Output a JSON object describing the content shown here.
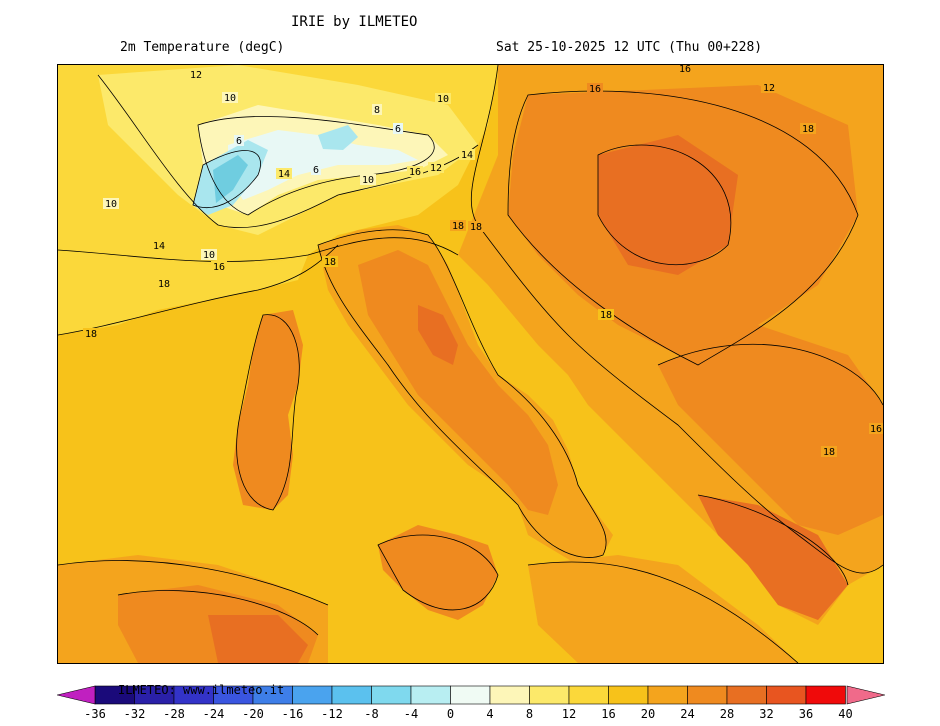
{
  "header": {
    "title": "IRIE by ILMETEO",
    "variable": "2m Temperature (degC)",
    "valid_time": "Sat 25-10-2025 12 UTC (Thu 00+228)"
  },
  "map": {
    "contour_labels": [
      {
        "text": "12",
        "id": "c1"
      },
      {
        "text": "10",
        "id": "c2"
      },
      {
        "text": "10",
        "id": "c3"
      },
      {
        "text": "8",
        "id": "c4"
      },
      {
        "text": "6",
        "id": "c5"
      },
      {
        "text": "6",
        "id": "c6"
      },
      {
        "text": "6",
        "id": "c7"
      },
      {
        "text": "10",
        "id": "c8"
      },
      {
        "text": "14",
        "id": "c9"
      },
      {
        "text": "14",
        "id": "c10"
      },
      {
        "text": "16",
        "id": "c11"
      },
      {
        "text": "12",
        "id": "c12"
      },
      {
        "text": "10",
        "id": "c13"
      },
      {
        "text": "14",
        "id": "c14"
      },
      {
        "text": "10",
        "id": "c15"
      },
      {
        "text": "16",
        "id": "c16"
      },
      {
        "text": "18",
        "id": "c17"
      },
      {
        "text": "18",
        "id": "c18"
      },
      {
        "text": "18",
        "id": "c19"
      },
      {
        "text": "16",
        "id": "c20"
      },
      {
        "text": "18",
        "id": "c21"
      },
      {
        "text": "16",
        "id": "c22"
      },
      {
        "text": "12",
        "id": "c23"
      },
      {
        "text": "18",
        "id": "c24"
      },
      {
        "text": "18",
        "id": "c25"
      },
      {
        "text": "18",
        "id": "c26"
      },
      {
        "text": "16",
        "id": "c27"
      },
      {
        "text": "18",
        "id": "c28"
      }
    ],
    "colors": {
      "sea_20_24": "#f7c21a",
      "land_24_28": "#f4a41d",
      "land_28_32": "#ef8a1f",
      "land_32_36": "#e86f22",
      "cold_16_20": "#fbd83a",
      "cold_12_16": "#fce96a",
      "cold_8_12": "#fdf6b8",
      "cold_4_8": "#e8f8f5",
      "cold_0_4": "#a9e6ee",
      "cold_below_0": "#6fcde0"
    }
  },
  "legend": {
    "watermark": "ILMETEO: www.ilmeteo.it",
    "ticks": [
      "-36",
      "-32",
      "-28",
      "-24",
      "-20",
      "-16",
      "-12",
      "-8",
      "-4",
      "0",
      "4",
      "8",
      "12",
      "16",
      "20",
      "24",
      "28",
      "32",
      "36",
      "40"
    ],
    "colors": [
      "#1a0a7a",
      "#2a20a8",
      "#3333c8",
      "#3a55e0",
      "#3e7ee8",
      "#4aa3ee",
      "#5bc1ee",
      "#7fd9ee",
      "#b8eef2",
      "#f0fbf4",
      "#fdf6b8",
      "#fce96a",
      "#fbd83a",
      "#f7c21a",
      "#f4a41d",
      "#ef8a1f",
      "#e86f22",
      "#e85520",
      "#f00a0a"
    ],
    "low_arrow": "#c020c0",
    "high_arrow": "#f06a8a"
  }
}
